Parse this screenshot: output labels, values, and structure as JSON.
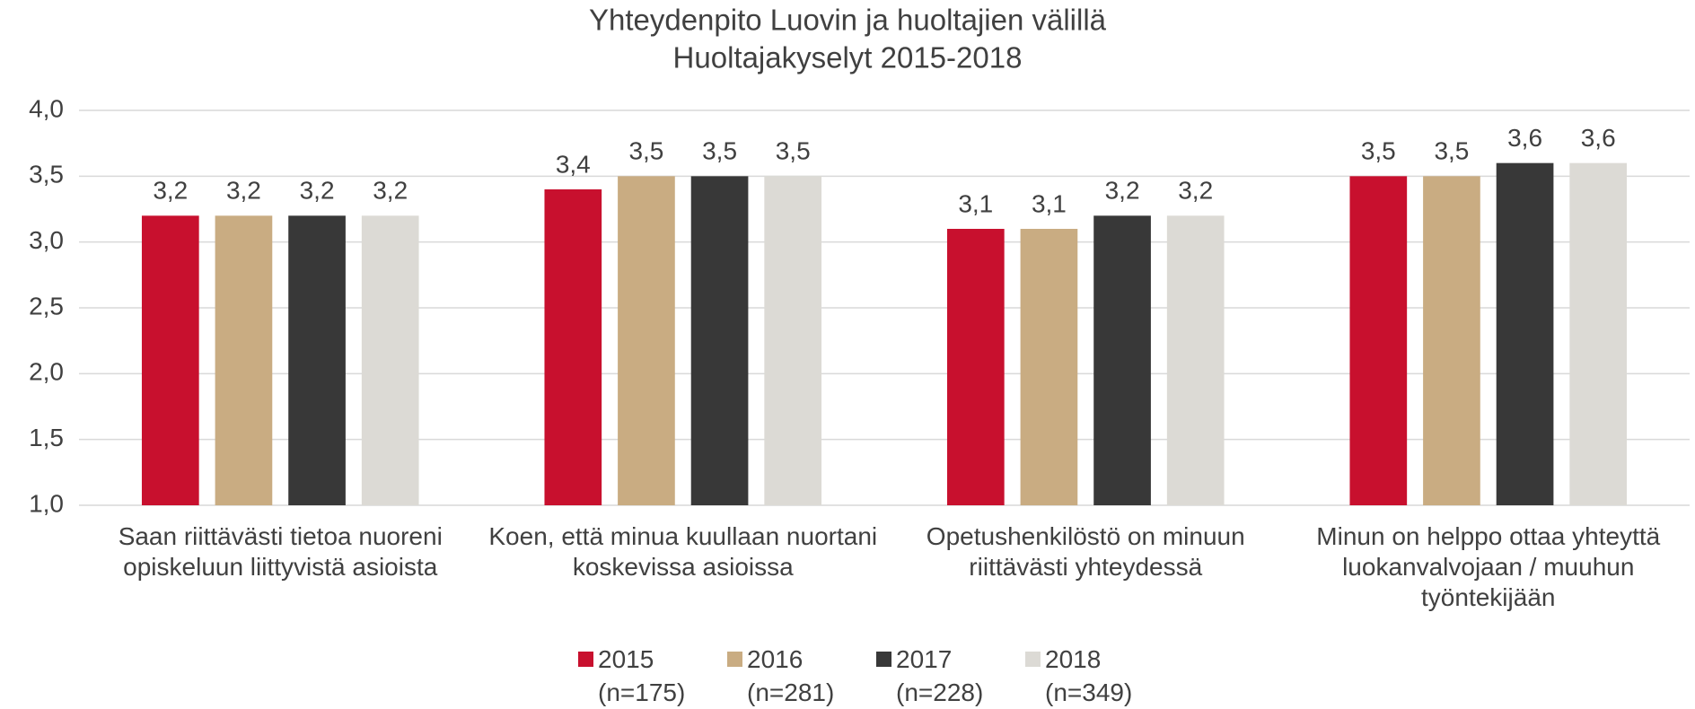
{
  "chart_data": {
    "type": "bar",
    "title": "Yhteydenpito Luovin ja huoltajien välillä",
    "subtitle": "Huoltajakyselyt 2015-2018",
    "categories": [
      "Saan riittävästi tietoa nuoreni opiskeluun liittyvistä asioista",
      "Koen, että minua kuullaan nuortani koskevissa asioissa",
      "Opetushenkilöstö on minuun riittävästi yhteydessä",
      "Minun on helppo ottaa yhteyttä luokanvalvojaan / muuhun työntekijään"
    ],
    "series": [
      {
        "name": "2015 (n=175)",
        "color": "#c8102e",
        "values": [
          3.2,
          3.4,
          3.1,
          3.5
        ],
        "value_labels": [
          "3,2",
          "3,4",
          "3,1",
          "3,5"
        ]
      },
      {
        "name": "2016 (n=281)",
        "color": "#c9ac82",
        "values": [
          3.2,
          3.5,
          3.1,
          3.5
        ],
        "value_labels": [
          "3,2",
          "3,5",
          "3,1",
          "3,5"
        ]
      },
      {
        "name": "2017 (n=228)",
        "color": "#383838",
        "values": [
          3.2,
          3.5,
          3.2,
          3.6
        ],
        "value_labels": [
          "3,2",
          "3,5",
          "3,2",
          "3,6"
        ]
      },
      {
        "name": "2018 (n=349)",
        "color": "#dcdad5",
        "values": [
          3.2,
          3.5,
          3.2,
          3.6
        ],
        "value_labels": [
          "3,2",
          "3,5",
          "3,2",
          "3,6"
        ]
      }
    ],
    "ylim": [
      1,
      4
    ],
    "yticks": [
      {
        "value": 1,
        "label": "1,0"
      },
      {
        "value": 1.5,
        "label": "1,5"
      },
      {
        "value": 2,
        "label": "2,0"
      },
      {
        "value": 2.5,
        "label": "2,5"
      },
      {
        "value": 3,
        "label": "3,0"
      },
      {
        "value": 3.5,
        "label": "3,5"
      },
      {
        "value": 4,
        "label": "4,0"
      }
    ],
    "grid": true,
    "legend": "bottom"
  }
}
